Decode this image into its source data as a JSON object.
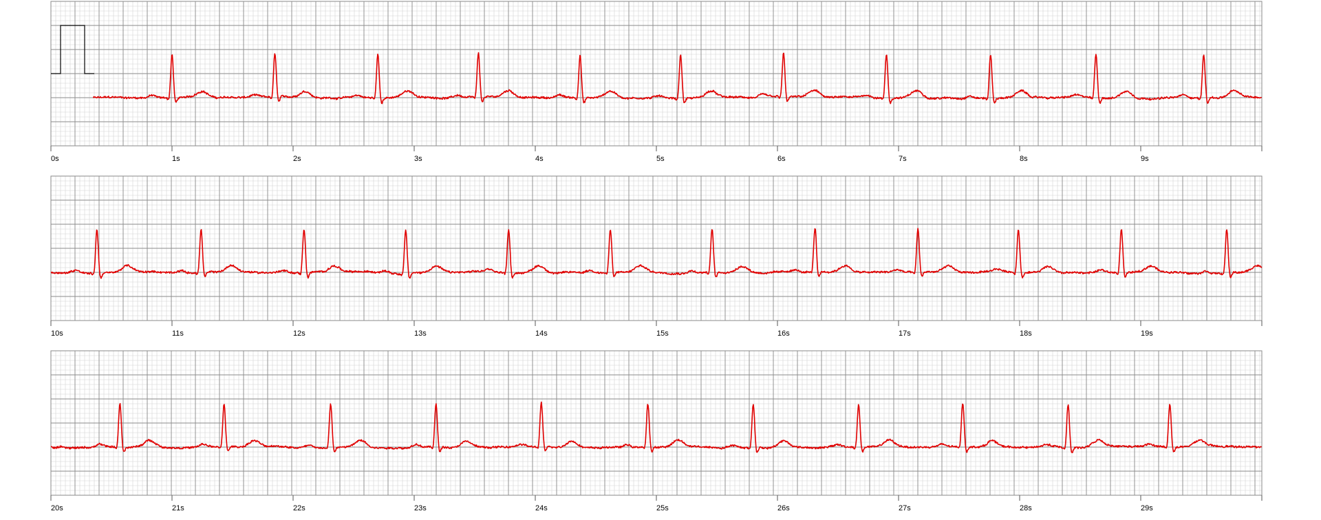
{
  "chart_data": {
    "type": "line",
    "x_unit": "s",
    "strips": [
      {
        "x_range": [
          0,
          10
        ],
        "tick_labels": [
          "0s",
          "1s",
          "2s",
          "3s",
          "4s",
          "5s",
          "6s",
          "7s",
          "8s",
          "9s"
        ],
        "beats_s": [
          1.0,
          1.85,
          2.7,
          3.53,
          4.37,
          5.2,
          6.05,
          6.9,
          7.76,
          8.63,
          9.52
        ],
        "calibration_pulse": true,
        "signal_start_s": 0.35
      },
      {
        "x_range": [
          10,
          20
        ],
        "tick_labels": [
          "10s",
          "11s",
          "12s",
          "13s",
          "14s",
          "15s",
          "16s",
          "17s",
          "18s",
          "19s"
        ],
        "beats_s": [
          10.38,
          11.24,
          12.09,
          12.93,
          13.78,
          14.62,
          15.46,
          16.31,
          17.16,
          17.99,
          18.84,
          19.71
        ],
        "calibration_pulse": false,
        "signal_start_s": 10.0
      },
      {
        "x_range": [
          20,
          30
        ],
        "tick_labels": [
          "20s",
          "21s",
          "22s",
          "23s",
          "24s",
          "25s",
          "26s",
          "27s",
          "28s",
          "29s"
        ],
        "beats_s": [
          20.57,
          21.43,
          22.31,
          23.18,
          24.05,
          24.93,
          25.8,
          26.67,
          27.53,
          28.4,
          29.24
        ],
        "calibration_pulse": false,
        "signal_start_s": 20.0
      }
    ],
    "colors": {
      "trace": "#e00000",
      "grid_minor": "#d2d2d2",
      "grid_major": "#8a8a8a",
      "calibration": "#000000"
    },
    "grid": true
  }
}
